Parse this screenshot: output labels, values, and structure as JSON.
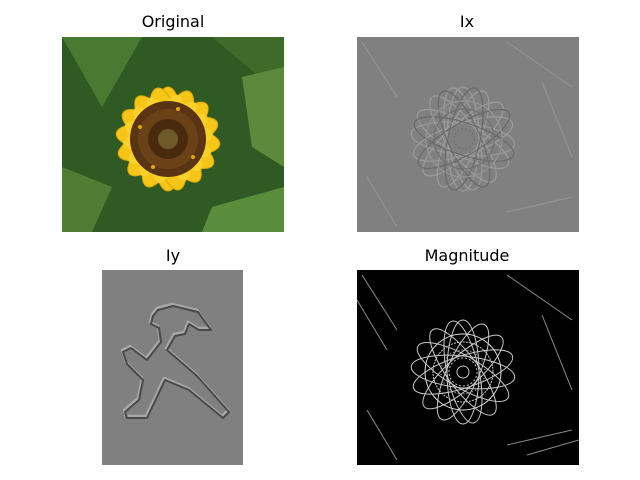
{
  "figure": {
    "panels": [
      {
        "title": "Original",
        "image": "sunflower-photo"
      },
      {
        "title": "Ix",
        "image": "sunflower-horizontal-gradient"
      },
      {
        "title": "Iy",
        "image": "walking-figure-vertical-gradient"
      },
      {
        "title": "Magnitude",
        "image": "sunflower-gradient-magnitude"
      }
    ]
  },
  "colors": {
    "petal_yellow": "#f5c518",
    "seed_brown": "#5a3413",
    "leaf_green": "#3f6b2a",
    "gradient_gray": "#808080",
    "magnitude_black": "#000000"
  }
}
